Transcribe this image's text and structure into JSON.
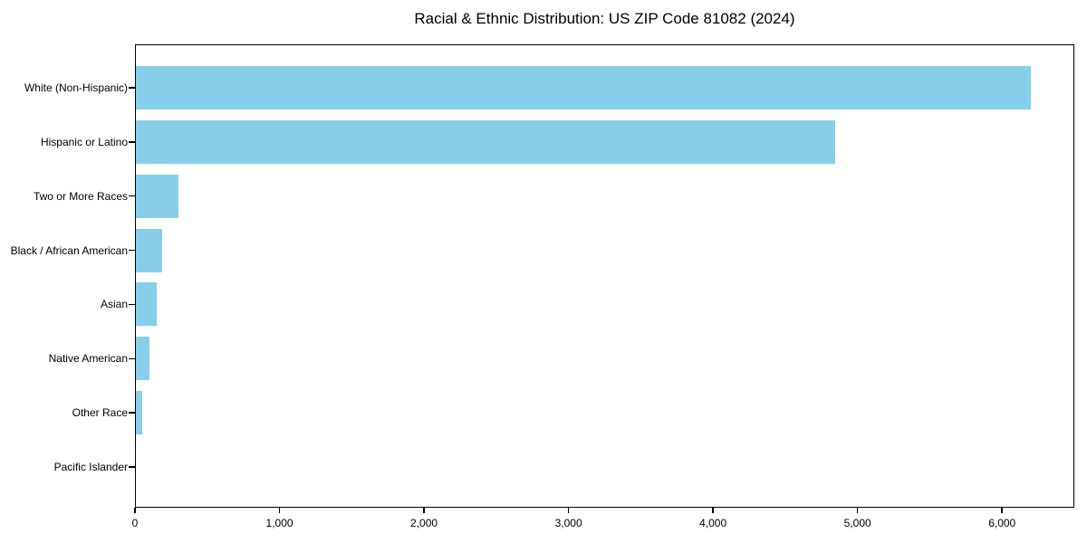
{
  "chart_data": {
    "type": "bar",
    "orientation": "horizontal",
    "title": "Racial & Ethnic Distribution: US ZIP Code 81082 (2024)",
    "categories": [
      "White (Non-Hispanic)",
      "Hispanic or Latino",
      "Two or More Races",
      "Black / African American",
      "Asian",
      "Native American",
      "Other Race",
      "Pacific Islander"
    ],
    "values": [
      6200,
      4845,
      300,
      190,
      150,
      100,
      50,
      3
    ],
    "xlabel": "",
    "ylabel": "",
    "xlim": [
      0,
      6500
    ],
    "xticks": [
      0,
      1000,
      2000,
      3000,
      4000,
      5000,
      6000
    ],
    "xtick_labels": [
      "0",
      "1,000",
      "2,000",
      "3,000",
      "4,000",
      "5,000",
      "6,000"
    ],
    "grid": false,
    "legend": "none",
    "bar_color": "#87CEEB",
    "frame_color": "#000000",
    "text_color": "#000000",
    "background": "#FFFFFF"
  }
}
